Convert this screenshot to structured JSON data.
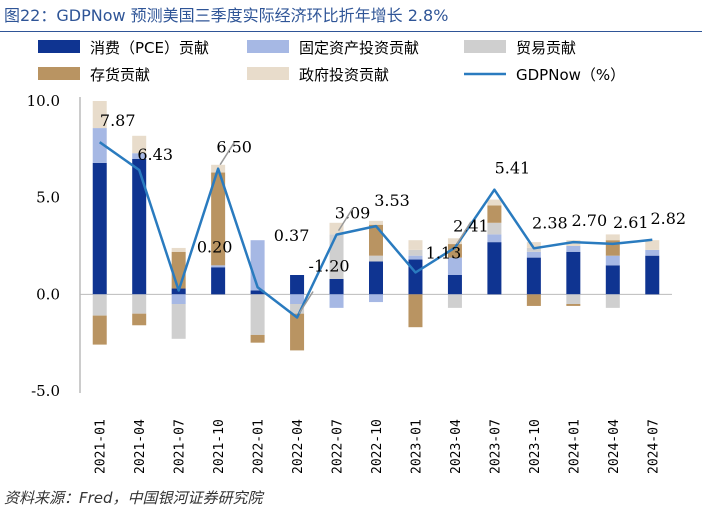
{
  "header": {
    "title": "图22：GDPNow 预测美国三季度实际经济环比折年增长 2.8%"
  },
  "footer": {
    "source": "资料来源：Fred，中国银河证券研究院"
  },
  "colors": {
    "consumption": "#0f3491",
    "investment": "#a6b8e4",
    "trade": "#cfcfcf",
    "inventory": "#b99462",
    "government": "#e8dccb",
    "gdpnow": "#2a7bbf"
  },
  "chart_data": {
    "type": "bar",
    "stacked": true,
    "ylim": [
      -5,
      10
    ],
    "yticks": [
      "10.0",
      "5.0",
      "0.0",
      "-5.0"
    ],
    "categories": [
      "2021-01",
      "2021-04",
      "2021-07",
      "2021-10",
      "2022-01",
      "2022-04",
      "2022-07",
      "2022-10",
      "2023-01",
      "2023-04",
      "2023-07",
      "2023-10",
      "2024-01",
      "2024-04",
      "2024-07"
    ],
    "series": [
      {
        "key": "consumption",
        "name": "消费（PCE）贡献",
        "values": [
          6.8,
          7.0,
          0.3,
          1.4,
          0.2,
          1.0,
          0.8,
          1.7,
          1.8,
          1.0,
          2.7,
          1.9,
          2.2,
          1.5,
          2.0
        ]
      },
      {
        "key": "investment",
        "name": "固定资产投资贡献",
        "values": [
          1.8,
          0.3,
          -0.5,
          0.1,
          2.6,
          -0.5,
          -0.7,
          -0.4,
          0.2,
          0.9,
          0.4,
          0.3,
          0.3,
          0.5,
          0.3
        ]
      },
      {
        "key": "trade",
        "name": "贸易贡献",
        "values": [
          -1.1,
          -1.0,
          -1.8,
          0.0,
          -2.1,
          -0.5,
          2.3,
          0.3,
          0.3,
          -0.7,
          0.6,
          0.2,
          -0.5,
          -0.7,
          0.0
        ]
      },
      {
        "key": "inventory",
        "name": "存货贡献",
        "values": [
          -1.5,
          -0.6,
          1.9,
          4.8,
          -0.4,
          -1.9,
          0.0,
          1.6,
          -1.7,
          0.7,
          0.9,
          -0.6,
          -0.1,
          0.8,
          0.0
        ]
      },
      {
        "key": "government",
        "name": "政府投资贡献",
        "values": [
          1.4,
          0.9,
          0.2,
          0.4,
          0.0,
          0.0,
          0.6,
          0.2,
          0.5,
          0.3,
          0.3,
          0.3,
          0.3,
          0.3,
          0.5
        ]
      }
    ],
    "line": {
      "key": "gdpnow",
      "name": "GDPNow（%）",
      "values": [
        7.87,
        6.43,
        0.2,
        6.5,
        0.37,
        -1.2,
        3.09,
        3.53,
        1.13,
        2.41,
        5.41,
        2.38,
        2.7,
        2.61,
        2.82
      ]
    },
    "labels": [
      {
        "text": "7.87",
        "i": 1,
        "v": 7.87
      },
      {
        "text": "6.43",
        "i": 2,
        "v": 6.43
      },
      {
        "text": "0.20",
        "i": 3,
        "v": 0.2
      },
      {
        "text": "6.50",
        "i": 4,
        "v": 6.5
      },
      {
        "text": "0.37",
        "i": 5,
        "v": 0.37
      },
      {
        "text": "-1.20",
        "i": 6,
        "v": -1.2
      },
      {
        "text": "3.09",
        "i": 7,
        "v": 3.09
      },
      {
        "text": "3.53",
        "i": 8,
        "v": 3.53
      },
      {
        "text": "1.13",
        "i": 9,
        "v": 1.13
      },
      {
        "text": "2.41",
        "i": 10,
        "v": 2.41
      },
      {
        "text": "5.41",
        "i": 11,
        "v": 5.41
      },
      {
        "text": "2.38",
        "i": 12,
        "v": 2.38
      },
      {
        "text": "2.70",
        "i": 13,
        "v": 2.7
      },
      {
        "text": "2.61",
        "i": 14,
        "v": 2.61
      },
      {
        "text": "2.82",
        "i": 15,
        "v": 2.82
      }
    ]
  }
}
